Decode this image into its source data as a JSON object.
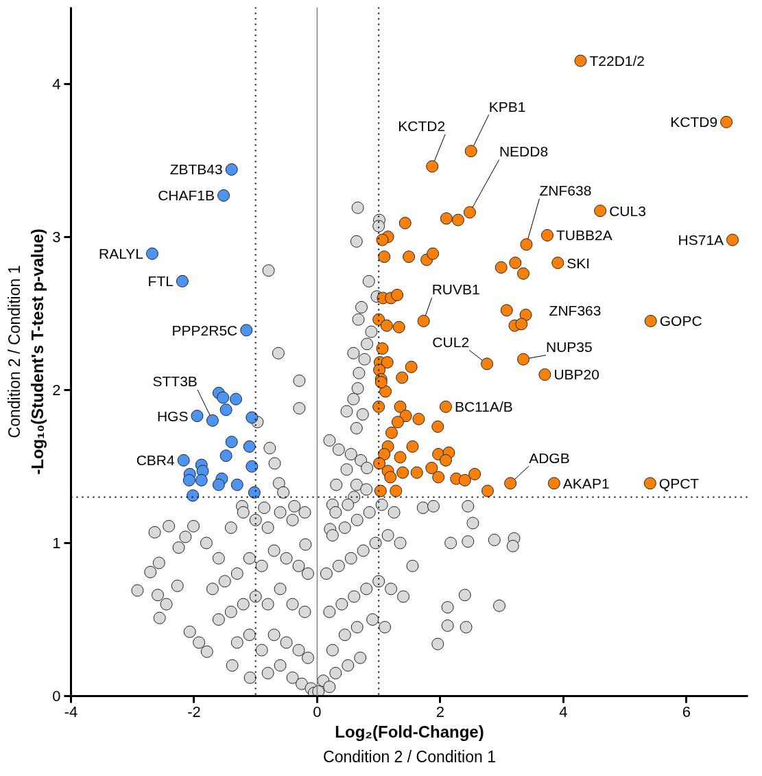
{
  "chart_data": {
    "type": "scatter",
    "xlabel": "Log₂(Fold-Change)",
    "ylabel": "-Log₁₀(Student's T-test p-value)",
    "annotations": [
      "Condition 2 / Condition 1",
      "Condition 2 / Condition 1",
      {
        "text": "ZBTB43",
        "x": -1.39,
        "y": 3.44
      },
      {
        "text": "CHAF1B",
        "x": -1.52,
        "y": 3.27
      },
      {
        "text": "RALYL",
        "x": -2.68,
        "y": 2.89
      },
      {
        "text": "FTL",
        "x": -2.19,
        "y": 2.71
      },
      {
        "text": "PPP2R5C",
        "x": -1.15,
        "y": 2.39
      },
      {
        "text": "STT3B",
        "x": -1.7,
        "y": 1.8
      },
      {
        "text": "HGS",
        "x": -1.95,
        "y": 1.83
      },
      {
        "text": "CBR4",
        "x": -2.17,
        "y": 1.54
      },
      {
        "text": "T22D1/2",
        "x": 4.28,
        "y": 4.15
      },
      {
        "text": "KCTD9",
        "x": 6.65,
        "y": 3.75
      },
      {
        "text": "KPB1",
        "x": 2.5,
        "y": 3.56
      },
      {
        "text": "KCTD2",
        "x": 1.87,
        "y": 3.46
      },
      {
        "text": "NEDD8",
        "x": 2.48,
        "y": 3.16
      },
      {
        "text": "ZNF638",
        "x": 3.4,
        "y": 2.95
      },
      {
        "text": "CUL3",
        "x": 4.6,
        "y": 3.17
      },
      {
        "text": "TUBB2A",
        "x": 3.74,
        "y": 3.01
      },
      {
        "text": "HS71A",
        "x": 6.75,
        "y": 2.98
      },
      {
        "text": "SKI",
        "x": 3.91,
        "y": 2.83
      },
      {
        "text": "RUVB1",
        "x": 1.73,
        "y": 2.45
      },
      {
        "text": "ZNF363",
        "x": 3.39,
        "y": 2.49
      },
      {
        "text": "GOPC",
        "x": 5.42,
        "y": 2.45
      },
      {
        "text": "CUL2",
        "x": 2.76,
        "y": 2.17
      },
      {
        "text": "NUP35",
        "x": 3.35,
        "y": 2.2
      },
      {
        "text": "UBP20",
        "x": 3.7,
        "y": 2.1
      },
      {
        "text": "BC11A/B",
        "x": 2.09,
        "y": 1.89
      },
      {
        "text": "ADGB",
        "x": 3.14,
        "y": 1.39
      },
      {
        "text": "AKAP1",
        "x": 3.85,
        "y": 1.39
      },
      {
        "text": "QPCT",
        "x": 5.41,
        "y": 1.39
      }
    ],
    "xlim": [
      -4,
      7
    ],
    "ylim": [
      0,
      4.5
    ],
    "xticks": [
      -4,
      -2,
      0,
      2,
      4,
      6
    ],
    "yticks": [
      0,
      1,
      2,
      3,
      4
    ],
    "grid": false,
    "marker": "circle",
    "ref_lines": [
      {
        "axis": "x",
        "value": -1,
        "color": "#000000",
        "line_style": "dotted"
      },
      {
        "axis": "x",
        "value": 1,
        "color": "#000000",
        "line_style": "dotted"
      },
      {
        "axis": "y",
        "value": 1.3,
        "color": "#000000",
        "line_style": "dotted"
      },
      {
        "axis": "x",
        "value": 0,
        "color": "#808080",
        "line_style": "solid"
      }
    ],
    "series": [
      {
        "color": "#d9d9d9",
        "x": [
          0.66,
          1.01,
          1.0,
          0.64,
          0.84,
          0.97,
          0.72,
          0.67,
          0.88,
          0.81,
          0.59,
          0.77,
          0.68,
          0.66,
          0.59,
          -0.79,
          -0.63,
          -0.29,
          -0.29,
          -0.97,
          -0.77,
          -0.69,
          0.2,
          0.48,
          0.74,
          0.64,
          0.35,
          0.55,
          0.48,
          0.71,
          0.31,
          0.64,
          0.81,
          -0.62,
          -0.55,
          -0.37,
          -0.86,
          -1.22,
          0.25,
          1.72,
          1.89,
          2.45,
          2.53,
          2.17,
          2.45,
          2.88,
          3.2,
          3.18,
          2.4,
          2.12,
          2.42,
          2.12,
          2.96,
          1.96,
          -2.92,
          -2.71,
          -2.57,
          -2.64,
          -2.41,
          -2.56,
          -2.45,
          -2.59,
          -2.14,
          -2.25,
          -2.27,
          -2.07,
          -1.79,
          -1.92,
          -1.38,
          -1.09,
          -2.01,
          -0.19,
          0.21,
          -1.8,
          -1.6,
          -1.4,
          -1.2,
          -1.0,
          -0.8,
          -0.6,
          -0.4,
          -0.2,
          -1.7,
          -1.5,
          -1.3,
          -1.1,
          -0.9,
          -0.7,
          -0.5,
          -0.3,
          -0.15,
          -1.6,
          -1.4,
          -1.2,
          -1.0,
          -0.8,
          -0.6,
          -0.4,
          -0.2,
          -1.3,
          -1.1,
          -0.9,
          -0.7,
          -0.5,
          -0.3,
          -0.15,
          -0.8,
          -0.6,
          -0.4,
          -0.25,
          -0.1,
          -0.05,
          0.02,
          0.1,
          0.2,
          0.3,
          0.5,
          0.7,
          0.25,
          0.45,
          0.65,
          0.9,
          1.1,
          0.2,
          0.4,
          0.6,
          0.8,
          1.0,
          1.2,
          1.4,
          0.15,
          0.35,
          0.55,
          0.75,
          0.95,
          1.15,
          1.35,
          1.55,
          0.25,
          0.45,
          0.65,
          0.85,
          1.05,
          1.25,
          0.6,
          0.8,
          0.5,
          0.3
        ],
        "values": [
          3.19,
          3.11,
          3.07,
          2.97,
          2.71,
          2.61,
          2.54,
          2.46,
          2.38,
          2.3,
          2.24,
          2.2,
          2.11,
          2.01,
          1.94,
          2.78,
          2.24,
          2.06,
          1.88,
          1.79,
          1.62,
          1.52,
          1.67,
          1.86,
          1.84,
          1.75,
          1.61,
          1.58,
          1.48,
          1.54,
          1.38,
          1.38,
          1.49,
          1.39,
          1.33,
          1.24,
          1.23,
          1.24,
          1.25,
          1.23,
          1.24,
          1.24,
          1.13,
          1.0,
          1.01,
          1.02,
          1.03,
          0.98,
          0.66,
          0.58,
          0.45,
          0.46,
          0.59,
          0.34,
          0.69,
          0.81,
          0.87,
          1.07,
          1.11,
          0.51,
          0.6,
          0.66,
          1.04,
          0.97,
          0.72,
          0.42,
          0.29,
          0.35,
          0.2,
          0.12,
          1.11,
          0.99,
          1.09,
          1.0,
          0.9,
          1.1,
          1.2,
          1.15,
          1.1,
          1.2,
          1.15,
          1.2,
          0.7,
          0.75,
          0.8,
          0.9,
          0.85,
          0.95,
          0.9,
          0.85,
          0.8,
          0.5,
          0.55,
          0.6,
          0.65,
          0.6,
          0.7,
          0.6,
          0.55,
          0.35,
          0.4,
          0.3,
          0.4,
          0.35,
          0.3,
          0.25,
          0.15,
          0.2,
          0.12,
          0.08,
          0.05,
          0.02,
          0.03,
          0.1,
          0.06,
          0.15,
          0.2,
          0.25,
          0.3,
          0.4,
          0.45,
          0.5,
          0.45,
          0.55,
          0.6,
          0.65,
          0.7,
          0.75,
          0.7,
          0.65,
          0.8,
          0.85,
          0.9,
          0.95,
          1.0,
          1.05,
          1.0,
          0.85,
          1.05,
          1.1,
          1.15,
          1.2,
          1.25,
          1.2,
          1.3,
          1.35,
          1.25,
          1.2
        ]
      },
      {
        "color": "#4d94f0",
        "x": [
          -1.39,
          -1.52,
          -2.68,
          -2.19,
          -1.15,
          -1.6,
          -1.53,
          -1.32,
          -1.48,
          -1.7,
          -1.95,
          -1.06,
          -1.39,
          -1.1,
          -2.17,
          -1.48,
          -1.88,
          -1.86,
          -2.07,
          -2.08,
          -1.88,
          -1.55,
          -1.6,
          -1.3,
          -1.02,
          -2.02,
          -1.06
        ],
        "values": [
          3.44,
          3.27,
          2.89,
          2.71,
          2.39,
          1.98,
          1.95,
          1.94,
          1.87,
          1.8,
          1.83,
          1.82,
          1.66,
          1.63,
          1.54,
          1.57,
          1.51,
          1.47,
          1.45,
          1.41,
          1.41,
          1.42,
          1.38,
          1.38,
          1.33,
          1.31,
          1.5
        ]
      },
      {
        "color": "#f98008",
        "x": [
          4.28,
          6.65,
          2.5,
          1.87,
          2.48,
          2.1,
          2.29,
          4.6,
          1.43,
          1.15,
          1.06,
          3.74,
          6.75,
          3.4,
          1.09,
          1.49,
          1.78,
          1.88,
          2.99,
          3.22,
          3.35,
          3.91,
          1.07,
          1.2,
          1.3,
          1.73,
          3.08,
          3.39,
          3.21,
          3.32,
          5.42,
          1.0,
          1.13,
          1.33,
          2.76,
          3.35,
          3.7,
          1.06,
          1.02,
          1.14,
          1.53,
          1.01,
          1.04,
          1.38,
          1.11,
          1.04,
          2.09,
          1.0,
          1.35,
          1.44,
          1.31,
          1.65,
          1.96,
          1.21,
          1.55,
          1.15,
          1.09,
          1.35,
          1.97,
          2.14,
          2.09,
          1.01,
          1.15,
          1.39,
          1.62,
          1.86,
          1.97,
          2.26,
          2.4,
          2.56,
          3.14,
          2.77,
          3.85,
          5.41,
          1.03,
          1.28,
          1.19
        ],
        "values": [
          4.15,
          3.75,
          3.56,
          3.46,
          3.16,
          3.12,
          3.11,
          3.17,
          3.09,
          3.0,
          2.98,
          3.01,
          2.98,
          2.95,
          2.87,
          2.87,
          2.85,
          2.89,
          2.8,
          2.83,
          2.76,
          2.83,
          2.6,
          2.6,
          2.62,
          2.45,
          2.52,
          2.49,
          2.42,
          2.43,
          2.45,
          2.46,
          2.42,
          2.41,
          2.17,
          2.2,
          2.1,
          2.27,
          2.18,
          2.18,
          2.15,
          2.13,
          2.07,
          2.08,
          1.99,
          2.05,
          1.89,
          1.89,
          1.89,
          1.83,
          1.79,
          1.81,
          1.76,
          1.72,
          1.63,
          1.63,
          1.58,
          1.56,
          1.58,
          1.59,
          1.54,
          1.52,
          1.47,
          1.46,
          1.46,
          1.49,
          1.43,
          1.42,
          1.41,
          1.45,
          1.39,
          1.34,
          1.39,
          1.39,
          1.34,
          1.34,
          1.43
        ]
      }
    ]
  }
}
